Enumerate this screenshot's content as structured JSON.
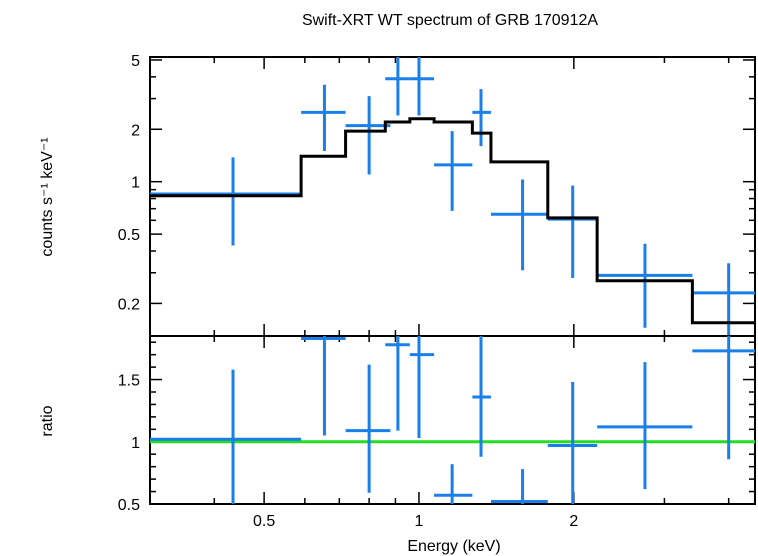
{
  "chart_data": [
    {
      "type": "scatter",
      "panel": "spectrum",
      "title": "Swift-XRT WT spectrum of GRB 170912A",
      "ylabel": "counts s⁻¹ keV⁻¹",
      "xlabel": "",
      "xscale": "log",
      "yscale": "log",
      "xlim": [
        0.3,
        4.5
      ],
      "ylim": [
        0.13,
        5.2
      ],
      "yticks": [
        0.2,
        0.5,
        1,
        2,
        5
      ],
      "ytick_labels": [
        "0.2",
        "0.5",
        "1",
        "2",
        "5"
      ],
      "data_color": "#1a7fe8",
      "model_color": "#000000",
      "points": [
        {
          "x": 0.435,
          "xlo": 0.3,
          "xhi": 0.59,
          "y": 0.85,
          "ylo": 0.43,
          "yhi": 1.38
        },
        {
          "x": 0.655,
          "xlo": 0.59,
          "xhi": 0.72,
          "y": 2.5,
          "ylo": 1.5,
          "yhi": 3.6
        },
        {
          "x": 0.8,
          "xlo": 0.72,
          "xhi": 0.88,
          "y": 2.1,
          "ylo": 1.1,
          "yhi": 3.1
        },
        {
          "x": 0.91,
          "xlo": 0.86,
          "xhi": 0.96,
          "y": 3.9,
          "ylo": 2.4,
          "yhi": 5.2
        },
        {
          "x": 1.0,
          "xlo": 0.96,
          "xhi": 1.07,
          "y": 3.9,
          "ylo": 2.4,
          "yhi": 5.2
        },
        {
          "x": 1.16,
          "xlo": 1.07,
          "xhi": 1.27,
          "y": 1.25,
          "ylo": 0.68,
          "yhi": 1.95
        },
        {
          "x": 1.32,
          "xlo": 1.27,
          "xhi": 1.38,
          "y": 2.5,
          "ylo": 1.6,
          "yhi": 3.4
        },
        {
          "x": 1.59,
          "xlo": 1.38,
          "xhi": 1.78,
          "y": 0.65,
          "ylo": 0.31,
          "yhi": 1.03
        },
        {
          "x": 1.99,
          "xlo": 1.78,
          "xhi": 2.22,
          "y": 0.61,
          "ylo": 0.28,
          "yhi": 0.95
        },
        {
          "x": 2.75,
          "xlo": 2.22,
          "xhi": 3.4,
          "y": 0.29,
          "ylo": 0.145,
          "yhi": 0.44
        },
        {
          "x": 4.0,
          "xlo": 3.4,
          "xhi": 4.5,
          "y": 0.23,
          "ylo": 0.13,
          "yhi": 0.34
        }
      ],
      "model": [
        {
          "xlo": 0.3,
          "xhi": 0.59,
          "y": 0.83
        },
        {
          "xlo": 0.59,
          "xhi": 0.72,
          "y": 1.4
        },
        {
          "xlo": 0.72,
          "xhi": 0.86,
          "y": 1.95
        },
        {
          "xlo": 0.86,
          "xhi": 0.96,
          "y": 2.2
        },
        {
          "xlo": 0.96,
          "xhi": 1.07,
          "y": 2.3
        },
        {
          "xlo": 1.07,
          "xhi": 1.27,
          "y": 2.2
        },
        {
          "xlo": 1.27,
          "xhi": 1.38,
          "y": 1.9
        },
        {
          "xlo": 1.38,
          "xhi": 1.78,
          "y": 1.3
        },
        {
          "xlo": 1.78,
          "xhi": 2.22,
          "y": 0.62
        },
        {
          "xlo": 2.22,
          "xhi": 3.4,
          "y": 0.27
        },
        {
          "xlo": 3.4,
          "xhi": 4.5,
          "y": 0.155
        }
      ]
    },
    {
      "type": "scatter",
      "panel": "ratio",
      "title": "",
      "xlabel": "Energy (keV)",
      "ylabel": "ratio",
      "xscale": "log",
      "yscale": "linear",
      "xlim": [
        0.3,
        4.5
      ],
      "ylim": [
        0.5,
        1.85
      ],
      "xticks": [
        0.5,
        1,
        2
      ],
      "xtick_labels": [
        "0.5",
        "1",
        "2"
      ],
      "yticks": [
        0.5,
        1,
        1.5
      ],
      "ytick_labels": [
        "0.5",
        "1",
        "1.5"
      ],
      "reference_line": 1,
      "reference_color": "#22dd22",
      "data_color": "#1a7fe8",
      "points": [
        {
          "x": 0.435,
          "xlo": 0.3,
          "xhi": 0.59,
          "y": 1.02,
          "ylo": 0.5,
          "yhi": 1.58
        },
        {
          "x": 0.655,
          "xlo": 0.59,
          "xhi": 0.72,
          "y": 1.83,
          "ylo": 1.05,
          "yhi": 1.85
        },
        {
          "x": 0.8,
          "xlo": 0.72,
          "xhi": 0.88,
          "y": 1.09,
          "ylo": 0.59,
          "yhi": 1.62
        },
        {
          "x": 0.91,
          "xlo": 0.86,
          "xhi": 0.96,
          "y": 1.78,
          "ylo": 1.09,
          "yhi": 1.85
        },
        {
          "x": 1.0,
          "xlo": 0.96,
          "xhi": 1.07,
          "y": 1.7,
          "ylo": 1.03,
          "yhi": 1.85
        },
        {
          "x": 1.16,
          "xlo": 1.07,
          "xhi": 1.27,
          "y": 0.57,
          "ylo": 0.5,
          "yhi": 0.82
        },
        {
          "x": 1.32,
          "xlo": 1.27,
          "xhi": 1.38,
          "y": 1.36,
          "ylo": 0.88,
          "yhi": 1.85
        },
        {
          "x": 1.59,
          "xlo": 1.38,
          "xhi": 1.78,
          "y": 0.52,
          "ylo": 0.5,
          "yhi": 0.78
        },
        {
          "x": 1.99,
          "xlo": 1.78,
          "xhi": 2.22,
          "y": 0.97,
          "ylo": 0.5,
          "yhi": 1.48
        },
        {
          "x": 2.75,
          "xlo": 2.22,
          "xhi": 3.4,
          "y": 1.12,
          "ylo": 0.62,
          "yhi": 1.64
        },
        {
          "x": 4.0,
          "xlo": 3.4,
          "xhi": 4.5,
          "y": 1.73,
          "ylo": 0.86,
          "yhi": 1.85
        }
      ]
    }
  ]
}
